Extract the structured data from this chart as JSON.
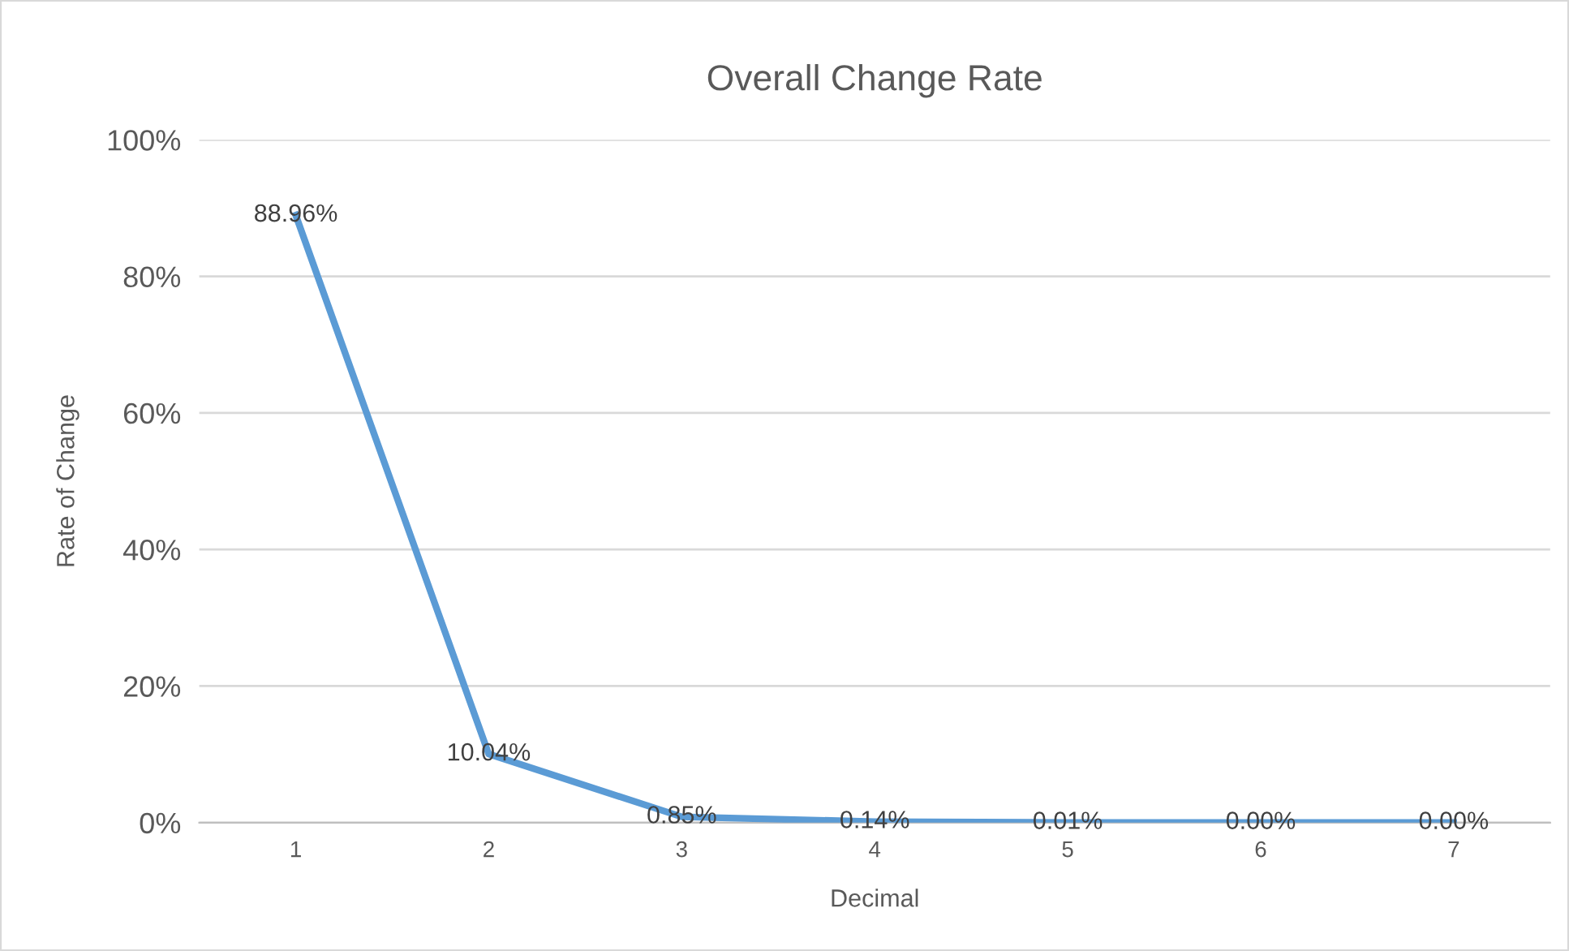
{
  "chart_data": {
    "type": "line",
    "title": "Overall Change Rate",
    "xlabel": "Decimal",
    "ylabel": "Rate of Change",
    "categories": [
      "1",
      "2",
      "3",
      "4",
      "5",
      "6",
      "7"
    ],
    "series": [
      {
        "color": "#5b9bd5",
        "values": [
          88.96,
          10.04,
          0.85,
          0.14,
          0.01,
          0.0,
          0.0
        ],
        "value_labels": [
          "88.96%",
          "10.04%",
          "0.85%",
          "0.14%",
          "0.01%",
          "0.00%",
          "0.00%"
        ]
      }
    ],
    "ylim": [
      0,
      100
    ],
    "yticks": [
      {
        "value": 0,
        "label": "0%"
      },
      {
        "value": 20,
        "label": "20%"
      },
      {
        "value": 40,
        "label": "40%"
      },
      {
        "value": 60,
        "label": "60%"
      },
      {
        "value": 80,
        "label": "80%"
      },
      {
        "value": 100,
        "label": "100%"
      }
    ],
    "grid": "y",
    "legend": false,
    "marker": "none",
    "line_style": "solid"
  }
}
